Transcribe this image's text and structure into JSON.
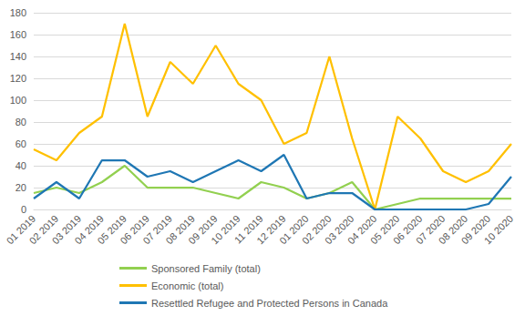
{
  "chart_data": {
    "type": "line",
    "categories": [
      "01 2019",
      "02 2019",
      "03 2019",
      "04 2019",
      "05 2019",
      "06 2019",
      "07 2019",
      "08 2019",
      "09 2019",
      "10 2019",
      "11 2019",
      "12 2019",
      "01 2020",
      "02 2020",
      "03 2020",
      "04 2020",
      "05 2020",
      "06 2020",
      "07 2020",
      "08 2020",
      "09 2020",
      "10 2020"
    ],
    "series": [
      {
        "name": "Sponsored Family (total)",
        "color": "#92d050",
        "values": [
          15,
          20,
          15,
          25,
          40,
          20,
          20,
          20,
          15,
          10,
          25,
          20,
          10,
          15,
          25,
          0,
          5,
          10,
          10,
          10,
          10,
          10
        ]
      },
      {
        "name": "Economic (total)",
        "color": "#ffc000",
        "values": [
          55,
          45,
          70,
          85,
          170,
          85,
          135,
          115,
          150,
          115,
          100,
          60,
          70,
          140,
          65,
          0,
          85,
          65,
          35,
          25,
          35,
          60
        ]
      },
      {
        "name": "Resettled Refugee and Protected Persons in Canada",
        "color": "#1f77b4",
        "values": [
          10,
          25,
          10,
          45,
          45,
          30,
          35,
          25,
          35,
          45,
          35,
          50,
          10,
          15,
          15,
          0,
          0,
          0,
          0,
          0,
          5,
          30
        ]
      }
    ],
    "ylim": [
      0,
      180
    ],
    "yticks": [
      0,
      20,
      40,
      60,
      80,
      100,
      120,
      140,
      160,
      180
    ],
    "grid": true,
    "legend": "bottom"
  }
}
